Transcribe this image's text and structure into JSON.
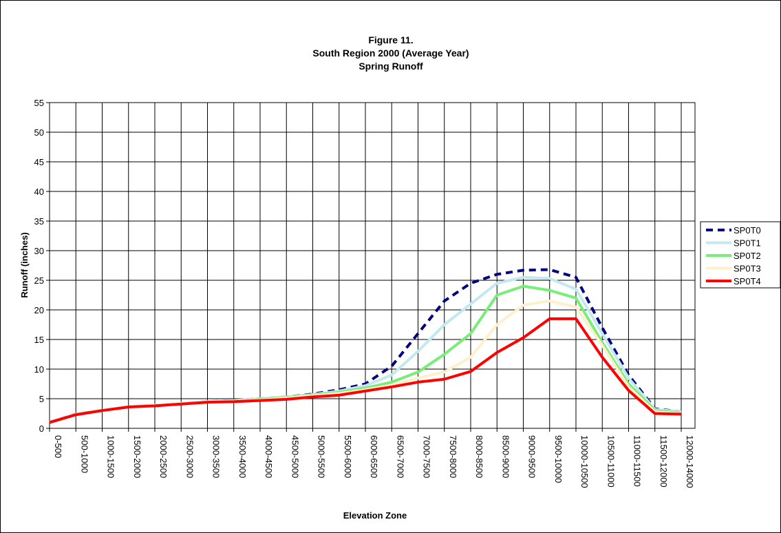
{
  "chart_data": {
    "type": "line",
    "title": [
      "Figure 11.",
      "South Region 2000 (Average Year)",
      "Spring Runoff"
    ],
    "x_label": "Elevation Zone",
    "y_label": "Runoff (inches)",
    "categories": [
      "0-500",
      "500-1000",
      "1000-1500",
      "1500-2000",
      "2000-2500",
      "2500-3000",
      "3000-3500",
      "3500-4000",
      "4000-4500",
      "4500-5000",
      "5000-5500",
      "5500-6000",
      "6000-6500",
      "6500-7000",
      "7000-7500",
      "7500-8000",
      "8000-8500",
      "8500-9000",
      "9000-9500",
      "9500-10000",
      "10000-10500",
      "10500-11000",
      "11000-11500",
      "11500-12000",
      "12000-14000"
    ],
    "ylim": [
      0,
      55
    ],
    "yticks": [
      0,
      5,
      10,
      15,
      20,
      25,
      30,
      35,
      40,
      45,
      50,
      55
    ],
    "grid": true,
    "legend": "right",
    "series": [
      {
        "name": "SP0T0",
        "color": "#000080",
        "dashed": true,
        "values": [
          1,
          2.4,
          3,
          3.6,
          3.9,
          4.2,
          4.5,
          4.7,
          5,
          5.3,
          5.8,
          6.5,
          7.5,
          10.5,
          16,
          21.5,
          24.5,
          26,
          26.7,
          26.8,
          25.5,
          17,
          9,
          3.3,
          2.8
        ]
      },
      {
        "name": "SP0T1",
        "color": "#c4e8f0",
        "values": [
          1,
          2.4,
          3,
          3.6,
          3.9,
          4.2,
          4.5,
          4.7,
          5,
          5.3,
          5.7,
          6.3,
          7.2,
          9,
          13,
          17.5,
          21,
          24.5,
          25.5,
          25.3,
          23.5,
          16,
          8.5,
          3.2,
          2.8
        ]
      },
      {
        "name": "SP0T2",
        "color": "#77ee77",
        "values": [
          1,
          2.3,
          3,
          3.6,
          3.9,
          4.2,
          4.4,
          4.6,
          4.9,
          5.2,
          5.6,
          6.1,
          6.8,
          7.8,
          9.5,
          12.5,
          16,
          22.5,
          24,
          23.3,
          22,
          14.5,
          7.5,
          3,
          2.6
        ]
      },
      {
        "name": "SP0T3",
        "color": "#fff0cc",
        "values": [
          1,
          2.3,
          3,
          3.6,
          3.9,
          4.2,
          4.4,
          4.6,
          4.8,
          5.1,
          5.5,
          5.9,
          6.5,
          7.3,
          8.5,
          9.5,
          12,
          17.5,
          20.8,
          21.5,
          20.5,
          14,
          7,
          2.8,
          2.5
        ]
      },
      {
        "name": "SP0T4",
        "color": "#ff0000",
        "values": [
          1,
          2.3,
          3,
          3.6,
          3.8,
          4.1,
          4.4,
          4.5,
          4.7,
          4.9,
          5.3,
          5.6,
          6.3,
          7,
          7.8,
          8.3,
          9.6,
          12.8,
          15.3,
          18.5,
          18.5,
          12,
          6.4,
          2.5,
          2.4
        ]
      }
    ]
  }
}
